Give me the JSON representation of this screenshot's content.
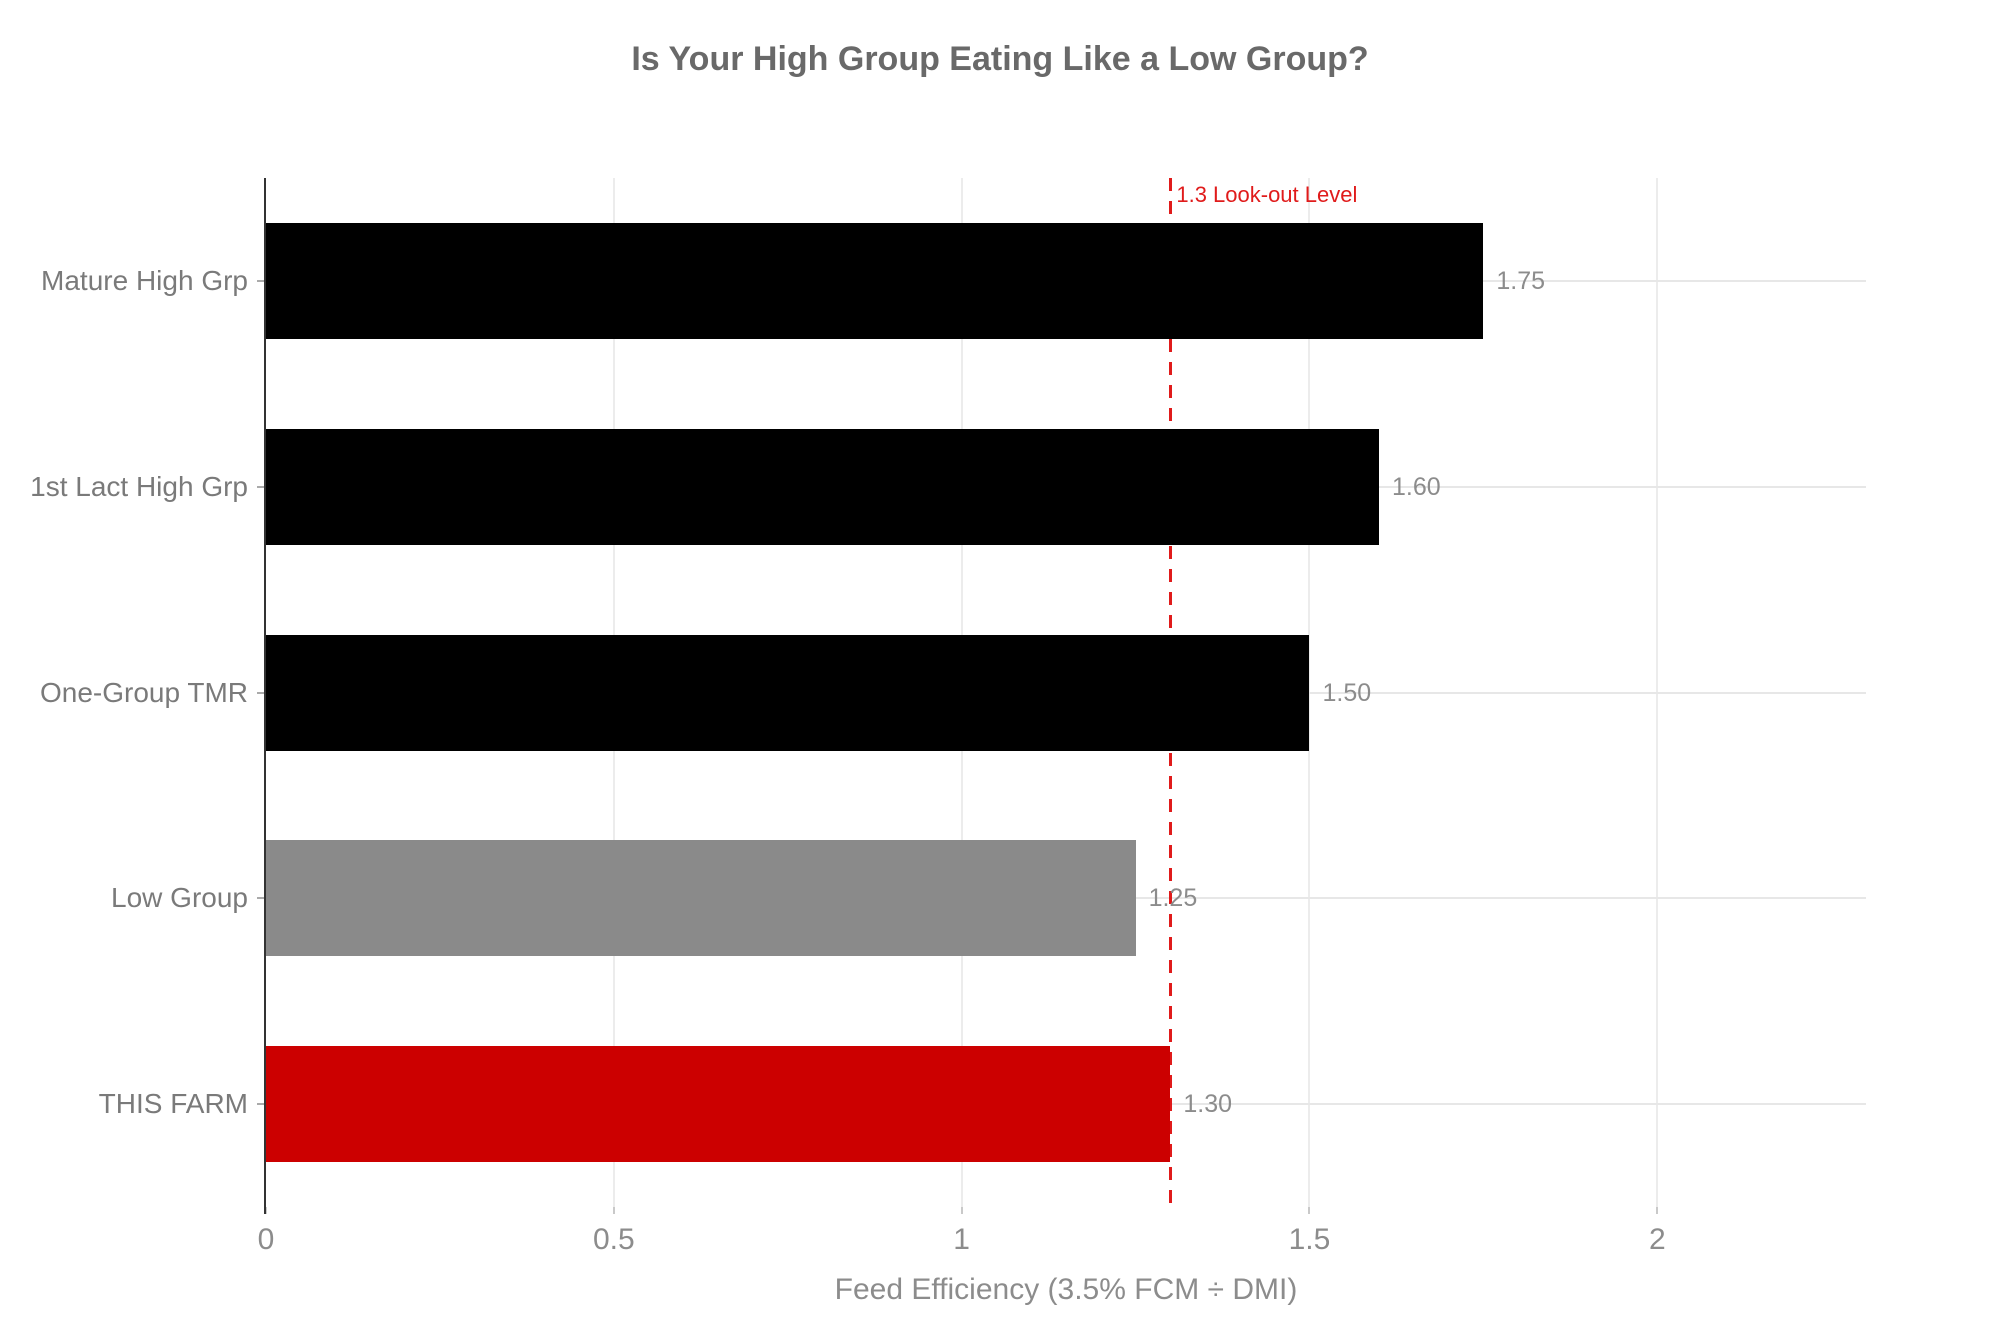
{
  "chart_data": {
    "type": "bar",
    "orientation": "horizontal",
    "title": "Is Your High Group Eating Like a Low Group?",
    "xlabel": "Feed Efficiency (3.5% FCM ÷ DMI)",
    "categories": [
      "Mature High Grp",
      "1st Lact High Grp",
      "One-Group TMR",
      "Low Group",
      "THIS FARM"
    ],
    "values": [
      1.75,
      1.6,
      1.5,
      1.25,
      1.3
    ],
    "value_labels": [
      "1.75",
      "1.60",
      "1.50",
      "1.25",
      "1.30"
    ],
    "bar_colors": [
      "#000000",
      "#000000",
      "#000000",
      "#8a8a8a",
      "#cc0000"
    ],
    "xlim": [
      0,
      2.3
    ],
    "xticks": [
      0,
      0.5,
      1,
      1.5,
      2
    ],
    "xtick_labels": [
      "0",
      "0.5",
      "1",
      "1.5",
      "2"
    ],
    "grid": "on",
    "legend": "none",
    "annotation": {
      "value": 1.3,
      "label": "1.3 Look-out Level",
      "color": "#e01b1b",
      "style": "dashed-vertical-line"
    },
    "colors": {
      "title_text": "#696969",
      "category_text": "#7a7a7a",
      "value_text": "#8c8c8c",
      "tick_text": "#8c8c8c",
      "axis_line": "#333333",
      "gridline": "#e7e7e7",
      "background": "#ffffff"
    }
  }
}
